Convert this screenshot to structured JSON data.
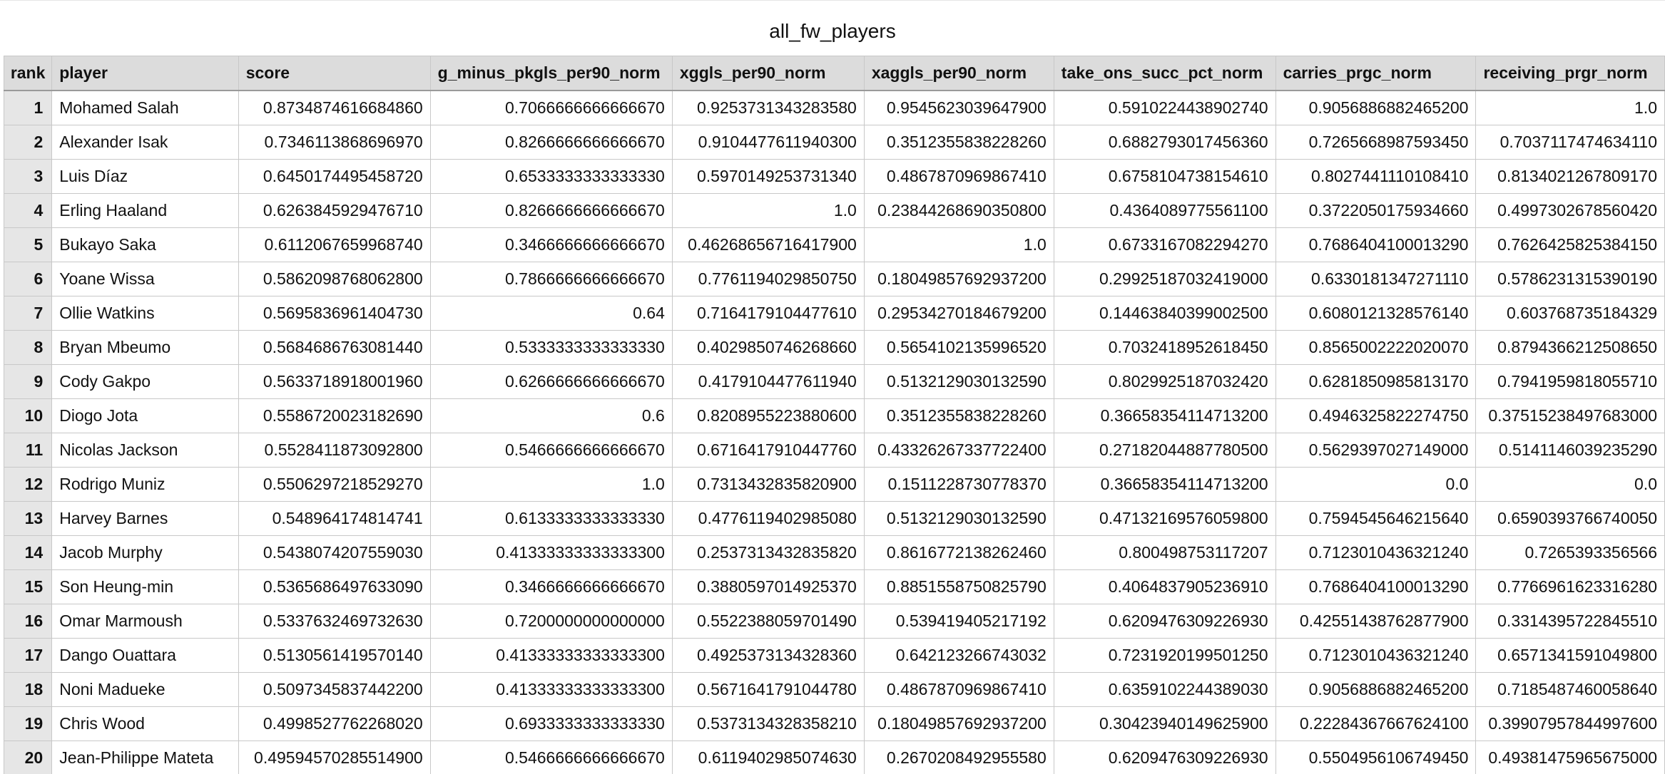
{
  "title": "all_fw_players",
  "columns": [
    "rank",
    "player",
    "score",
    "g_minus_pkgls_per90_norm",
    "xggls_per90_norm",
    "xaggls_per90_norm",
    "take_ons_succ_pct_norm",
    "carries_prgc_norm",
    "receiving_prgr_norm"
  ],
  "rows": [
    {
      "rank": "1",
      "player": "Mohamed Salah",
      "score": "0.8734874616684860",
      "g_minus_pkgls_per90_norm": "0.7066666666666670",
      "xggls_per90_norm": "0.9253731343283580",
      "xaggls_per90_norm": "0.9545623039647900",
      "take_ons_succ_pct_norm": "0.5910224438902740",
      "carries_prgc_norm": "0.9056886882465200",
      "receiving_prgr_norm": "1.0"
    },
    {
      "rank": "2",
      "player": "Alexander Isak",
      "score": "0.7346113868696970",
      "g_minus_pkgls_per90_norm": "0.8266666666666670",
      "xggls_per90_norm": "0.9104477611940300",
      "xaggls_per90_norm": "0.3512355838228260",
      "take_ons_succ_pct_norm": "0.6882793017456360",
      "carries_prgc_norm": "0.7265668987593450",
      "receiving_prgr_norm": "0.7037117474634110"
    },
    {
      "rank": "3",
      "player": "Luis Díaz",
      "score": "0.6450174495458720",
      "g_minus_pkgls_per90_norm": "0.6533333333333330",
      "xggls_per90_norm": "0.5970149253731340",
      "xaggls_per90_norm": "0.4867870969867410",
      "take_ons_succ_pct_norm": "0.6758104738154610",
      "carries_prgc_norm": "0.8027441110108410",
      "receiving_prgr_norm": "0.8134021267809170"
    },
    {
      "rank": "4",
      "player": "Erling Haaland",
      "score": "0.6263845929476710",
      "g_minus_pkgls_per90_norm": "0.8266666666666670",
      "xggls_per90_norm": "1.0",
      "xaggls_per90_norm": "0.23844268690350800",
      "take_ons_succ_pct_norm": "0.4364089775561100",
      "carries_prgc_norm": "0.3722050175934660",
      "receiving_prgr_norm": "0.4997302678560420"
    },
    {
      "rank": "5",
      "player": "Bukayo Saka",
      "score": "0.6112067659968740",
      "g_minus_pkgls_per90_norm": "0.3466666666666670",
      "xggls_per90_norm": "0.46268656716417900",
      "xaggls_per90_norm": "1.0",
      "take_ons_succ_pct_norm": "0.6733167082294270",
      "carries_prgc_norm": "0.7686404100013290",
      "receiving_prgr_norm": "0.7626425825384150"
    },
    {
      "rank": "6",
      "player": "Yoane Wissa",
      "score": "0.5862098768062800",
      "g_minus_pkgls_per90_norm": "0.7866666666666670",
      "xggls_per90_norm": "0.7761194029850750",
      "xaggls_per90_norm": "0.18049857692937200",
      "take_ons_succ_pct_norm": "0.29925187032419000",
      "carries_prgc_norm": "0.6330181347271110",
      "receiving_prgr_norm": "0.5786231315390190"
    },
    {
      "rank": "7",
      "player": "Ollie Watkins",
      "score": "0.5695836961404730",
      "g_minus_pkgls_per90_norm": "0.64",
      "xggls_per90_norm": "0.7164179104477610",
      "xaggls_per90_norm": "0.29534270184679200",
      "take_ons_succ_pct_norm": "0.14463840399002500",
      "carries_prgc_norm": "0.6080121328576140",
      "receiving_prgr_norm": "0.603768735184329"
    },
    {
      "rank": "8",
      "player": "Bryan Mbeumo",
      "score": "0.5684686763081440",
      "g_minus_pkgls_per90_norm": "0.5333333333333330",
      "xggls_per90_norm": "0.4029850746268660",
      "xaggls_per90_norm": "0.5654102135996520",
      "take_ons_succ_pct_norm": "0.7032418952618450",
      "carries_prgc_norm": "0.8565002222020070",
      "receiving_prgr_norm": "0.8794366212508650"
    },
    {
      "rank": "9",
      "player": "Cody Gakpo",
      "score": "0.5633718918001960",
      "g_minus_pkgls_per90_norm": "0.6266666666666670",
      "xggls_per90_norm": "0.4179104477611940",
      "xaggls_per90_norm": "0.5132129030132590",
      "take_ons_succ_pct_norm": "0.8029925187032420",
      "carries_prgc_norm": "0.6281850985813170",
      "receiving_prgr_norm": "0.7941959818055710"
    },
    {
      "rank": "10",
      "player": "Diogo Jota",
      "score": "0.5586720023182690",
      "g_minus_pkgls_per90_norm": "0.6",
      "xggls_per90_norm": "0.8208955223880600",
      "xaggls_per90_norm": "0.3512355838228260",
      "take_ons_succ_pct_norm": "0.36658354114713200",
      "carries_prgc_norm": "0.4946325822274750",
      "receiving_prgr_norm": "0.37515238497683000"
    },
    {
      "rank": "11",
      "player": "Nicolas Jackson",
      "score": "0.5528411873092800",
      "g_minus_pkgls_per90_norm": "0.5466666666666670",
      "xggls_per90_norm": "0.6716417910447760",
      "xaggls_per90_norm": "0.43326267337722400",
      "take_ons_succ_pct_norm": "0.27182044887780500",
      "carries_prgc_norm": "0.5629397027149000",
      "receiving_prgr_norm": "0.5141146039235290"
    },
    {
      "rank": "12",
      "player": "Rodrigo Muniz",
      "score": "0.5506297218529270",
      "g_minus_pkgls_per90_norm": "1.0",
      "xggls_per90_norm": "0.7313432835820900",
      "xaggls_per90_norm": "0.1511228730778370",
      "take_ons_succ_pct_norm": "0.36658354114713200",
      "carries_prgc_norm": "0.0",
      "receiving_prgr_norm": "0.0"
    },
    {
      "rank": "13",
      "player": "Harvey Barnes",
      "score": "0.548964174814741",
      "g_minus_pkgls_per90_norm": "0.6133333333333330",
      "xggls_per90_norm": "0.4776119402985080",
      "xaggls_per90_norm": "0.5132129030132590",
      "take_ons_succ_pct_norm": "0.47132169576059800",
      "carries_prgc_norm": "0.7594545646215640",
      "receiving_prgr_norm": "0.6590393766740050"
    },
    {
      "rank": "14",
      "player": "Jacob Murphy",
      "score": "0.5438074207559030",
      "g_minus_pkgls_per90_norm": "0.41333333333333300",
      "xggls_per90_norm": "0.2537313432835820",
      "xaggls_per90_norm": "0.8616772138262460",
      "take_ons_succ_pct_norm": "0.800498753117207",
      "carries_prgc_norm": "0.7123010436321240",
      "receiving_prgr_norm": "0.7265393356566"
    },
    {
      "rank": "15",
      "player": "Son Heung-min",
      "score": "0.5365686497633090",
      "g_minus_pkgls_per90_norm": "0.3466666666666670",
      "xggls_per90_norm": "0.3880597014925370",
      "xaggls_per90_norm": "0.8851558750825790",
      "take_ons_succ_pct_norm": "0.4064837905236910",
      "carries_prgc_norm": "0.7686404100013290",
      "receiving_prgr_norm": "0.7766961623316280"
    },
    {
      "rank": "16",
      "player": "Omar Marmoush",
      "score": "0.5337632469732630",
      "g_minus_pkgls_per90_norm": "0.7200000000000000",
      "xggls_per90_norm": "0.5522388059701490",
      "xaggls_per90_norm": "0.539419405217192",
      "take_ons_succ_pct_norm": "0.6209476309226930",
      "carries_prgc_norm": "0.42551438762877900",
      "receiving_prgr_norm": "0.3314395722845510"
    },
    {
      "rank": "17",
      "player": "Dango Ouattara",
      "score": "0.5130561419570140",
      "g_minus_pkgls_per90_norm": "0.41333333333333300",
      "xggls_per90_norm": "0.4925373134328360",
      "xaggls_per90_norm": "0.642123266743032",
      "take_ons_succ_pct_norm": "0.7231920199501250",
      "carries_prgc_norm": "0.7123010436321240",
      "receiving_prgr_norm": "0.6571341591049800"
    },
    {
      "rank": "18",
      "player": "Noni Madueke",
      "score": "0.5097345837442200",
      "g_minus_pkgls_per90_norm": "0.41333333333333300",
      "xggls_per90_norm": "0.5671641791044780",
      "xaggls_per90_norm": "0.4867870969867410",
      "take_ons_succ_pct_norm": "0.6359102244389030",
      "carries_prgc_norm": "0.9056886882465200",
      "receiving_prgr_norm": "0.7185487460058640"
    },
    {
      "rank": "19",
      "player": "Chris Wood",
      "score": "0.4998527762268020",
      "g_minus_pkgls_per90_norm": "0.6933333333333330",
      "xggls_per90_norm": "0.5373134328358210",
      "xaggls_per90_norm": "0.18049857692937200",
      "take_ons_succ_pct_norm": "0.30423940149625900",
      "carries_prgc_norm": "0.22284367667624100",
      "receiving_prgr_norm": "0.39907957844997600"
    },
    {
      "rank": "20",
      "player": "Jean-Philippe Mateta",
      "score": "0.49594570285514900",
      "g_minus_pkgls_per90_norm": "0.5466666666666670",
      "xggls_per90_norm": "0.6119402985074630",
      "xaggls_per90_norm": "0.2670208492955580",
      "take_ons_succ_pct_norm": "0.6209476309226930",
      "carries_prgc_norm": "0.5504956106749450",
      "receiving_prgr_norm": "0.49381475965675000"
    }
  ]
}
